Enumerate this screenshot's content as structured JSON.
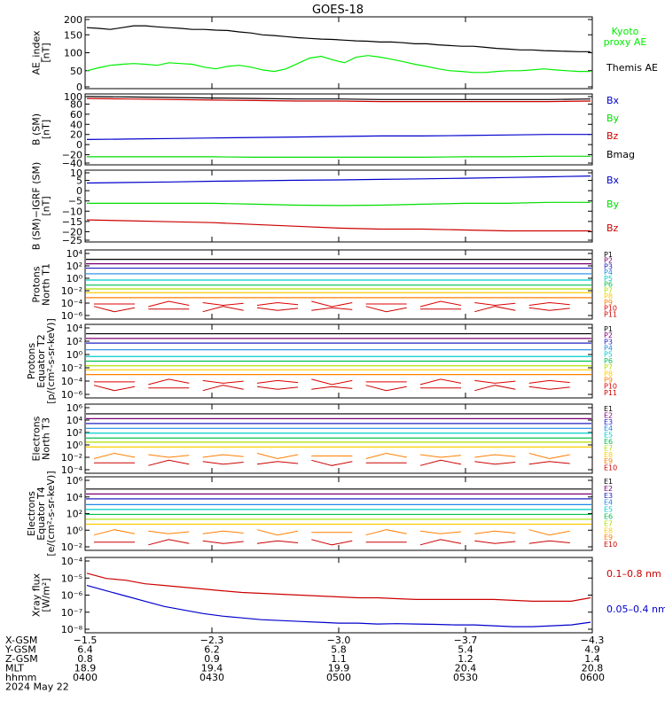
{
  "chart_data": {
    "type": "line",
    "title": "GOES-18",
    "panels": [
      {
        "id": "ae",
        "ylabel": [
          "AE_index",
          "[nT]"
        ],
        "yticks": [
          "200",
          "150",
          "100",
          "50",
          "0"
        ],
        "ylim": [
          0,
          200
        ],
        "series": [
          {
            "name": "Kyoto proxy AE",
            "color": "#00ee00",
            "values": [
              50,
              58,
              65,
              68,
              70,
              68,
              65,
              72,
              70,
              68,
              60,
              55,
              62,
              65,
              60,
              52,
              48,
              55,
              70,
              85,
              90,
              80,
              72,
              88,
              92,
              88,
              82,
              75,
              68,
              62,
              55,
              50,
              48,
              45,
              45,
              48,
              50,
              50,
              52,
              55,
              52,
              50,
              48,
              48
            ]
          },
          {
            "name": "Themis AE",
            "color": "#000000",
            "values": [
              170,
              168,
              165,
              170,
              175,
              175,
              172,
              170,
              168,
              165,
              165,
              163,
              162,
              158,
              155,
              150,
              148,
              145,
              142,
              140,
              138,
              137,
              135,
              133,
              132,
              130,
              130,
              128,
              125,
              125,
              122,
              120,
              118,
              118,
              115,
              112,
              110,
              108,
              108,
              106,
              105,
              104,
              103,
              103
            ]
          }
        ]
      },
      {
        "id": "bsm",
        "ylabel": [
          "B (SM)",
          "[nT]"
        ],
        "yticks": [
          "100",
          "80",
          "60",
          "40",
          "20",
          "0",
          "−20",
          "−40"
        ],
        "ylim": [
          -40,
          100
        ],
        "series": [
          {
            "name": "Bx",
            "color": "#0000cc",
            "values": [
              10,
              11,
              12,
              13,
              14,
              15,
              16,
              17,
              17,
              18,
              19,
              20,
              20
            ]
          },
          {
            "name": "By",
            "color": "#00dd00",
            "values": [
              -24,
              -24,
              -24,
              -24,
              -25,
              -25,
              -25,
              -25,
              -25,
              -24,
              -24,
              -23,
              -23
            ]
          },
          {
            "name": "Bz",
            "color": "#cc0000",
            "values": [
              91,
              90,
              89,
              88,
              87,
              86,
              86,
              85,
              85,
              85,
              85,
              85,
              86
            ]
          },
          {
            "name": "Bmag",
            "color": "#000000",
            "values": [
              95,
              94,
              93,
              92,
              91,
              90,
              90,
              89,
              89,
              89,
              89,
              89,
              90
            ]
          }
        ]
      },
      {
        "id": "bigrf",
        "ylabel": [
          "B (SM)−IGRF (SM)",
          "[nT]"
        ],
        "yticks": [
          "10",
          "5",
          "0",
          "−5",
          "−10",
          "−15",
          "−20",
          "−25"
        ],
        "ylim": [
          -27,
          12
        ],
        "series": [
          {
            "name": "Bx",
            "color": "#0000cc",
            "values": [
              5,
              5.3,
              5.6,
              6,
              6.2,
              6.5,
              6.7,
              7,
              7.3,
              7.6,
              8,
              8.4,
              8.8
            ]
          },
          {
            "name": "By",
            "color": "#00dd00",
            "values": [
              -6,
              -6,
              -6,
              -6,
              -6.5,
              -7,
              -7.2,
              -7,
              -6.5,
              -6,
              -6,
              -5.5,
              -5.5
            ]
          },
          {
            "name": "Bz",
            "color": "#cc0000",
            "values": [
              -15,
              -15.5,
              -16,
              -16.5,
              -17.5,
              -18.5,
              -19.5,
              -20,
              -20,
              -20.5,
              -21,
              -21,
              -21
            ]
          }
        ]
      },
      {
        "id": "protons_t1",
        "ylabel": [
          "Protons",
          "North T1"
        ],
        "yticks": [
          "10⁴",
          "10²",
          "10⁰",
          "10⁻²",
          "10⁻⁴",
          "10⁻⁶"
        ],
        "log": true,
        "ylim": [
          -7,
          4
        ],
        "channels": [
          {
            "name": "P1",
            "color": "#000000",
            "value": 2.5
          },
          {
            "name": "P2",
            "color": "#7a0070",
            "value": 1.8
          },
          {
            "name": "P3",
            "color": "#2020c0",
            "value": 1.1
          },
          {
            "name": "P4",
            "color": "#1e88e5",
            "value": 0.2
          },
          {
            "name": "P5",
            "color": "#00cccc",
            "value": -0.8
          },
          {
            "name": "P6",
            "color": "#00c050",
            "value": -1.6
          },
          {
            "name": "P7",
            "color": "#b0e000",
            "value": -2.2
          },
          {
            "name": "P8",
            "color": "#ffcc00",
            "value": -2.8
          },
          {
            "name": "P9",
            "color": "#ff7f00",
            "value": -3.6
          },
          {
            "name": "P10",
            "color": "#dd0000",
            "value": -4.6
          },
          {
            "name": "P11",
            "color": "#cc0000",
            "value": -5.4
          }
        ]
      },
      {
        "id": "protons_t2",
        "ylabel": [
          "Protons",
          "Equator T2",
          "[p/(cm²-s-sr-keV)]"
        ],
        "yticks": [
          "10⁴",
          "10²",
          "10⁰",
          "10⁻²",
          "10⁻⁴",
          "10⁻⁶"
        ],
        "log": true,
        "ylim": [
          -7,
          4
        ],
        "channels": [
          {
            "name": "P1",
            "color": "#000000",
            "value": 2.6
          },
          {
            "name": "P2",
            "color": "#7a0070",
            "value": 1.9
          },
          {
            "name": "P3",
            "color": "#2020c0",
            "value": 1.2
          },
          {
            "name": "P4",
            "color": "#1e88e5",
            "value": 0.2
          },
          {
            "name": "P5",
            "color": "#00cccc",
            "value": -0.8
          },
          {
            "name": "P6",
            "color": "#00c050",
            "value": -1.5
          },
          {
            "name": "P7",
            "color": "#b0e000",
            "value": -2.2
          },
          {
            "name": "P8",
            "color": "#ffcc00",
            "value": -2.8
          },
          {
            "name": "P9",
            "color": "#ff7f00",
            "value": -3.5
          },
          {
            "name": "P10",
            "color": "#dd0000",
            "value": -4.6
          },
          {
            "name": "P11",
            "color": "#cc0000",
            "value": -5.5
          }
        ]
      },
      {
        "id": "electrons_t3",
        "ylabel": [
          "Electrons",
          "North T3"
        ],
        "yticks": [
          "10⁶",
          "10⁴",
          "10²",
          "10⁰",
          "10⁻²",
          "10⁻⁴"
        ],
        "log": true,
        "ylim": [
          -4,
          6
        ],
        "channels": [
          {
            "name": "E1",
            "color": "#000000",
            "value": 4.6
          },
          {
            "name": "E2",
            "color": "#7a0070",
            "value": 3.9
          },
          {
            "name": "E3",
            "color": "#2020c0",
            "value": 3.2
          },
          {
            "name": "E4",
            "color": "#1e88e5",
            "value": 2.5
          },
          {
            "name": "E5",
            "color": "#00cccc",
            "value": 1.8
          },
          {
            "name": "E6",
            "color": "#00c050",
            "value": 1.1
          },
          {
            "name": "E7",
            "color": "#b0e000",
            "value": 0.5
          },
          {
            "name": "E8",
            "color": "#ffcc00",
            "value": -0.2
          },
          {
            "name": "E9",
            "color": "#ff7f00",
            "value": -1.5
          },
          {
            "name": "E10",
            "color": "#cc0000",
            "value": -2.5
          }
        ]
      },
      {
        "id": "electrons_t4",
        "ylabel": [
          "Electrons",
          "Equator T4",
          "[e/(cm²-s-sr-keV)]"
        ],
        "yticks": [
          "10⁶",
          "10⁴",
          "10²",
          "10⁰",
          "10⁻²"
        ],
        "log": true,
        "ylim": [
          -3,
          6
        ],
        "channels": [
          {
            "name": "E1",
            "color": "#000000",
            "value": 4.5
          },
          {
            "name": "E2",
            "color": "#7a0070",
            "value": 3.9
          },
          {
            "name": "E3",
            "color": "#2020c0",
            "value": 3.3
          },
          {
            "name": "E4",
            "color": "#1e88e5",
            "value": 2.6
          },
          {
            "name": "E5",
            "color": "#00cccc",
            "value": 2.0
          },
          {
            "name": "E6",
            "color": "#00c050",
            "value": 1.4
          },
          {
            "name": "E7",
            "color": "#b0e000",
            "value": 0.8
          },
          {
            "name": "E8",
            "color": "#ffcc00",
            "value": 0.2
          },
          {
            "name": "E9",
            "color": "#ff7f00",
            "value": -0.8
          },
          {
            "name": "E10",
            "color": "#cc0000",
            "value": -2.0
          }
        ]
      },
      {
        "id": "xray",
        "ylabel": [
          "Xray flux",
          "[W/m²]"
        ],
        "yticks": [
          "10⁻⁴",
          "10⁻⁵",
          "10⁻⁶",
          "10⁻⁷",
          "10⁻⁸"
        ],
        "log": true,
        "ylim": [
          -8.3,
          -4
        ],
        "series": [
          {
            "name": "0.1–0.8 nm",
            "color": "#cc0000",
            "values": [
              -4.9,
              -5.2,
              -5.3,
              -5.5,
              -5.6,
              -5.7,
              -5.8,
              -5.9,
              -6.0,
              -6.05,
              -6.1,
              -6.15,
              -6.2,
              -6.25,
              -6.3,
              -6.3,
              -6.35,
              -6.4,
              -6.4,
              -6.4,
              -6.4,
              -6.4,
              -6.45,
              -6.5,
              -6.5,
              -6.5,
              -6.3
            ]
          },
          {
            "name": "0.05–0.4 nm",
            "color": "#0000cc",
            "values": [
              -5.6,
              -5.9,
              -6.2,
              -6.5,
              -6.8,
              -7.0,
              -7.2,
              -7.35,
              -7.45,
              -7.55,
              -7.6,
              -7.65,
              -7.7,
              -7.75,
              -7.75,
              -7.8,
              -7.78,
              -7.8,
              -7.82,
              -7.85,
              -7.85,
              -7.9,
              -7.95,
              -7.95,
              -7.9,
              -7.85,
              -7.7
            ]
          }
        ]
      }
    ],
    "x_axis": {
      "rows": [
        {
          "label": "X-GSM",
          "values": [
            "−1.5",
            "−2.3",
            "−3.0",
            "−3.7",
            "−4.3"
          ]
        },
        {
          "label": "Y-GSM",
          "values": [
            "6.4",
            "6.2",
            "5.8",
            "5.4",
            "4.9"
          ]
        },
        {
          "label": "Z-GSM",
          "values": [
            "0.8",
            "0.9",
            "1.1",
            "1.2",
            "1.4"
          ]
        },
        {
          "label": "MLT",
          "values": [
            "18.9",
            "19.4",
            "19.9",
            "20.4",
            "20.8"
          ]
        },
        {
          "label": "hhmm",
          "values": [
            "0400",
            "0430",
            "0500",
            "0530",
            "0600"
          ]
        }
      ],
      "date": "2024 May 22"
    }
  }
}
